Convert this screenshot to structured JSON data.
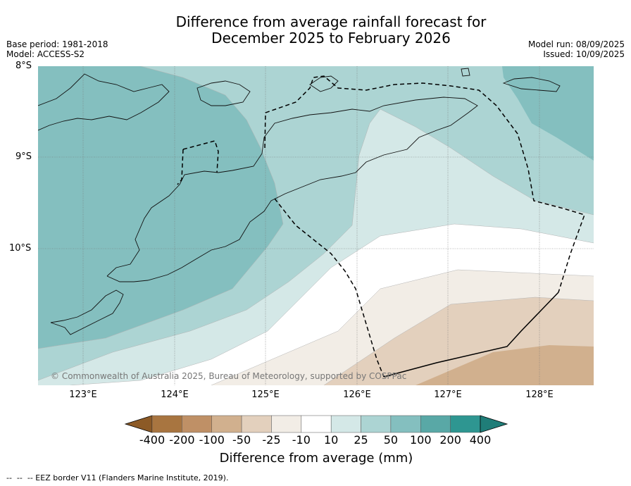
{
  "title_line1": "Difference from average rainfall forecast for",
  "title_line2": "December 2025 to February 2026",
  "meta_left": [
    "Base period: 1981-2018",
    "Model: ACCESS-S2"
  ],
  "meta_right": [
    "Model run: 08/09/2025",
    "Issued: 10/09/2025"
  ],
  "lat_labels": [
    "8°S",
    "9°S",
    "10°S"
  ],
  "lon_labels": [
    "123°E",
    "124°E",
    "125°E",
    "126°E",
    "127°E",
    "128°E"
  ],
  "copyright": "© Commonwealth of Australia 2025, Bureau of Meteorology, supported by COSPPac",
  "colorbar": {
    "ticks": [
      "-400",
      "-200",
      "-100",
      "-50",
      "-25",
      "-10",
      "10",
      "25",
      "50",
      "100",
      "200",
      "400"
    ],
    "colors": [
      "#8c5a26",
      "#a87540",
      "#bf9066",
      "#d1b08e",
      "#e3d0bd",
      "#f2ede6",
      "#ffffff",
      "#d4e8e7",
      "#acd4d3",
      "#84bfbf",
      "#59a8a6",
      "#2e9691",
      "#1f7d78"
    ],
    "label": "Difference from average (mm)"
  },
  "footer": "--  --  -- EEZ border V11 (Flanders Marine Institute, 2019)."
}
